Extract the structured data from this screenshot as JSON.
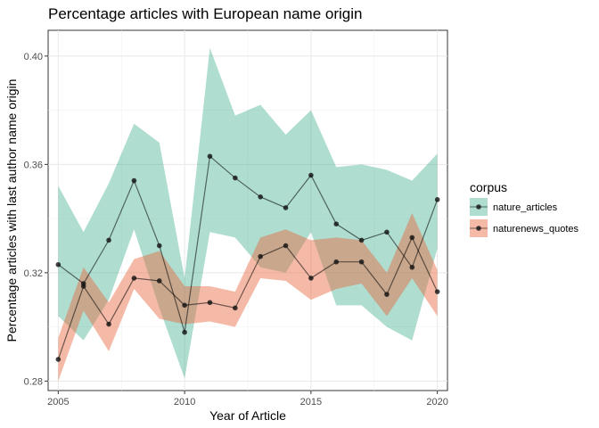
{
  "chart_data": {
    "type": "line",
    "title": "Percentage articles with European name origin",
    "xlabel": "Year of Article",
    "ylabel": "Percentage articles with last author name origin",
    "xlim": [
      2004.6,
      2020.4
    ],
    "ylim": [
      0.2765,
      0.4095
    ],
    "x_ticks": [
      2005,
      2010,
      2015,
      2020
    ],
    "x_tick_labels": [
      "2005",
      "2010",
      "2015",
      "2020"
    ],
    "y_ticks": [
      0.28,
      0.32,
      0.36,
      0.4
    ],
    "y_tick_labels": [
      "0.28",
      "0.32",
      "0.36",
      "0.40"
    ],
    "grid": true,
    "legend": {
      "title": "corpus",
      "placement": "right"
    },
    "x": [
      2005,
      2006,
      2007,
      2008,
      2009,
      2010,
      2011,
      2012,
      2013,
      2014,
      2015,
      2016,
      2017,
      2018,
      2019,
      2020
    ],
    "series": [
      {
        "name": "nature_articles",
        "color": "#1b9e77",
        "values": [
          0.323,
          0.316,
          0.332,
          0.354,
          0.33,
          0.298,
          0.363,
          0.355,
          0.348,
          0.344,
          0.356,
          0.338,
          0.332,
          0.335,
          0.322,
          0.347
        ],
        "lower": [
          0.304,
          0.295,
          0.31,
          0.336,
          0.307,
          0.281,
          0.335,
          0.333,
          0.322,
          0.32,
          0.335,
          0.308,
          0.308,
          0.3,
          0.295,
          0.329
        ],
        "upper": [
          0.352,
          0.335,
          0.353,
          0.375,
          0.368,
          0.318,
          0.403,
          0.378,
          0.382,
          0.371,
          0.38,
          0.359,
          0.36,
          0.358,
          0.354,
          0.364
        ]
      },
      {
        "name": "naturenews_quotes",
        "color": "#e7653b",
        "values": [
          0.288,
          0.315,
          0.301,
          0.318,
          0.317,
          0.308,
          0.309,
          0.307,
          0.326,
          0.33,
          0.318,
          0.324,
          0.324,
          0.312,
          0.333,
          0.313
        ],
        "lower": [
          0.28,
          0.306,
          0.291,
          0.314,
          0.303,
          0.301,
          0.302,
          0.3,
          0.318,
          0.317,
          0.31,
          0.314,
          0.316,
          0.304,
          0.318,
          0.304
        ],
        "upper": [
          0.296,
          0.322,
          0.309,
          0.325,
          0.328,
          0.315,
          0.315,
          0.313,
          0.333,
          0.336,
          0.332,
          0.333,
          0.332,
          0.32,
          0.342,
          0.321
        ]
      }
    ]
  }
}
